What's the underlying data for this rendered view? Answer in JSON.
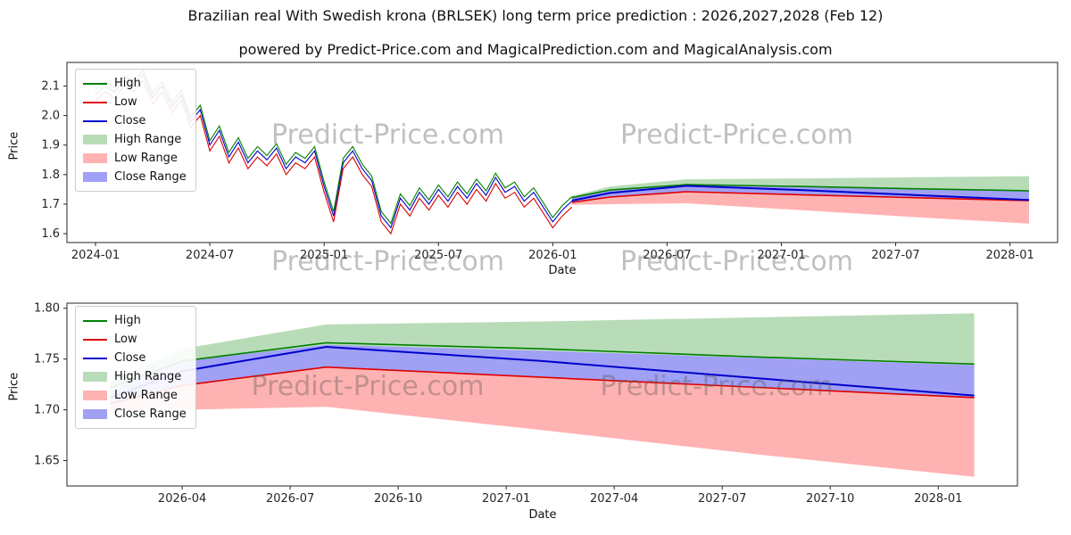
{
  "meta": {
    "title": "Brazilian real With Swedish krona (BRLSEK) long term price prediction : 2026,2027,2028 (Feb 12)",
    "subtitle": "powered by Predict-Price.com and MagicalPrediction.com and MagicalAnalysis.com"
  },
  "watermark": "Predict-Price.com",
  "axes": {
    "price_label": "Price",
    "date_label": "Date"
  },
  "legend": [
    {
      "label": "High",
      "type": "line",
      "color": "#008000"
    },
    {
      "label": "Low",
      "type": "line",
      "color": "#dd0000"
    },
    {
      "label": "Close",
      "type": "line",
      "color": "#0000cc"
    },
    {
      "label": "High Range",
      "type": "band",
      "color": "rgba(0,128,0,0.28)"
    },
    {
      "label": "Low Range",
      "type": "band",
      "color": "rgba(255,0,0,0.30)"
    },
    {
      "label": "Close Range",
      "type": "band",
      "color": "rgba(45,45,230,0.45)"
    }
  ],
  "colors": {
    "high_line": "#008000",
    "low_line": "#dd0000",
    "close_line": "#0000cc",
    "high_band": "rgba(0,128,0,0.28)",
    "low_band": "rgba(255,0,0,0.30)",
    "close_band": "rgba(45,45,230,0.45)",
    "spine": "#262626"
  },
  "chart_data": {
    "type": "line",
    "title": "BRLSEK historical prices (2024-01 to 2026-02) with predicted High/Low/Close ranges to 2028-02",
    "xlabel": "Date",
    "ylabel": "Price",
    "x_unit": "months since 2024-01",
    "historical": {
      "x_start": 0,
      "x_step": 0.5,
      "high": [
        2.085,
        2.115,
        2.095,
        2.135,
        2.115,
        2.155,
        2.075,
        2.115,
        2.045,
        2.085,
        1.995,
        2.035,
        1.915,
        1.965,
        1.875,
        1.925,
        1.855,
        1.895,
        1.865,
        1.905,
        1.835,
        1.875,
        1.855,
        1.895,
        1.775,
        1.675,
        1.855,
        1.895,
        1.835,
        1.795,
        1.675,
        1.635,
        1.735,
        1.695,
        1.755,
        1.715,
        1.765,
        1.725,
        1.775,
        1.735,
        1.785,
        1.745,
        1.805,
        1.755,
        1.775,
        1.725,
        1.755,
        1.705,
        1.655,
        1.695,
        1.725
      ],
      "low": [
        2.05,
        2.08,
        2.06,
        2.1,
        2.08,
        2.12,
        2.04,
        2.08,
        2.01,
        2.05,
        1.96,
        2.0,
        1.88,
        1.93,
        1.84,
        1.89,
        1.82,
        1.86,
        1.83,
        1.87,
        1.8,
        1.84,
        1.82,
        1.86,
        1.74,
        1.64,
        1.82,
        1.86,
        1.8,
        1.76,
        1.64,
        1.6,
        1.7,
        1.66,
        1.72,
        1.68,
        1.73,
        1.69,
        1.74,
        1.7,
        1.75,
        1.71,
        1.77,
        1.72,
        1.74,
        1.69,
        1.72,
        1.67,
        1.62,
        1.66,
        1.69
      ],
      "close": [
        2.07,
        2.1,
        2.08,
        2.12,
        2.1,
        2.14,
        2.06,
        2.1,
        2.03,
        2.07,
        1.98,
        2.02,
        1.9,
        1.95,
        1.86,
        1.91,
        1.84,
        1.88,
        1.85,
        1.89,
        1.82,
        1.86,
        1.84,
        1.88,
        1.76,
        1.66,
        1.84,
        1.88,
        1.82,
        1.78,
        1.66,
        1.62,
        1.72,
        1.68,
        1.74,
        1.7,
        1.75,
        1.71,
        1.76,
        1.72,
        1.77,
        1.73,
        1.79,
        1.74,
        1.76,
        1.71,
        1.74,
        1.69,
        1.64,
        1.68,
        1.71
      ]
    },
    "forecast": {
      "x": [
        25,
        27,
        31,
        37,
        43,
        49
      ],
      "high": [
        1.722,
        1.748,
        1.766,
        1.76,
        1.752,
        1.745
      ],
      "low": [
        1.706,
        1.724,
        1.742,
        1.732,
        1.722,
        1.712
      ],
      "close": [
        1.712,
        1.738,
        1.762,
        1.748,
        1.731,
        1.714
      ],
      "high_range_top": [
        1.728,
        1.76,
        1.784,
        1.787,
        1.791,
        1.795
      ],
      "close_range_top": [
        1.722,
        1.748,
        1.764,
        1.758,
        1.751,
        1.744
      ],
      "close_range_bottom": [
        1.706,
        1.724,
        1.742,
        1.732,
        1.722,
        1.712
      ],
      "low_range_bottom": [
        1.698,
        1.7,
        1.703,
        1.68,
        1.656,
        1.634
      ]
    },
    "charts": [
      {
        "id": "full",
        "x_domain": [
          -1.5,
          50.5
        ],
        "y_domain": [
          1.57,
          2.18
        ],
        "x_ticks": [
          {
            "m": 0,
            "label": "2024-01"
          },
          {
            "m": 6,
            "label": "2024-07"
          },
          {
            "m": 12,
            "label": "2025-01"
          },
          {
            "m": 18,
            "label": "2025-07"
          },
          {
            "m": 24,
            "label": "2026-01"
          },
          {
            "m": 30,
            "label": "2026-07"
          },
          {
            "m": 36,
            "label": "2027-01"
          },
          {
            "m": 42,
            "label": "2027-07"
          },
          {
            "m": 48,
            "label": "2028-01"
          }
        ],
        "y_ticks": [
          {
            "v": 1.6,
            "label": "1.6"
          },
          {
            "v": 1.7,
            "label": "1.7"
          },
          {
            "v": 1.8,
            "label": "1.8"
          },
          {
            "v": 1.9,
            "label": "1.9"
          },
          {
            "v": 2.0,
            "label": "2.0"
          },
          {
            "v": 2.1,
            "label": "2.1"
          }
        ],
        "show_historical": true
      },
      {
        "id": "forecast-zoom",
        "x_domain": [
          23.8,
          50.2
        ],
        "y_domain": [
          1.625,
          1.805
        ],
        "x_ticks": [
          {
            "m": 27,
            "label": "2026-04"
          },
          {
            "m": 30,
            "label": "2026-07"
          },
          {
            "m": 33,
            "label": "2026-10"
          },
          {
            "m": 36,
            "label": "2027-01"
          },
          {
            "m": 39,
            "label": "2027-04"
          },
          {
            "m": 42,
            "label": "2027-07"
          },
          {
            "m": 45,
            "label": "2027-10"
          },
          {
            "m": 48,
            "label": "2028-01"
          }
        ],
        "y_ticks": [
          {
            "v": 1.65,
            "label": "1.65"
          },
          {
            "v": 1.7,
            "label": "1.70"
          },
          {
            "v": 1.75,
            "label": "1.75"
          },
          {
            "v": 1.8,
            "label": "1.80"
          }
        ],
        "show_historical": false
      }
    ]
  }
}
